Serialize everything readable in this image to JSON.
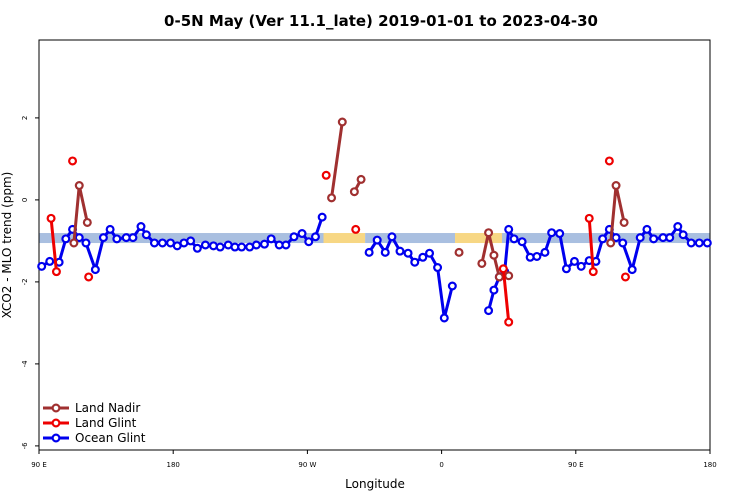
{
  "chart_data": {
    "type": "line",
    "title": "0-5N May (Ver 11.1_late)   2019-01-01 to 2023-04-30",
    "xlabel": "Longitude",
    "ylabel": "XCO2 - MLO trend (ppm)",
    "xlim": [
      0,
      500
    ],
    "ylim": [
      -6.1,
      3.9
    ],
    "x_ticks": [
      {
        "value": 0,
        "label": "90 E"
      },
      {
        "value": 100,
        "label": "180"
      },
      {
        "value": 200,
        "label": "90 W"
      },
      {
        "value": 300,
        "label": "0"
      },
      {
        "value": 400,
        "label": "90 E"
      },
      {
        "value": 500,
        "label": "180"
      }
    ],
    "y_ticks": [
      {
        "value": -6,
        "label": "-6"
      },
      {
        "value": -4,
        "label": "-4"
      },
      {
        "value": -2,
        "label": "-2"
      },
      {
        "value": 0,
        "label": "0"
      },
      {
        "value": 2,
        "label": "2"
      }
    ],
    "band": {
      "y": -0.93,
      "segments": [
        {
          "x0": 0,
          "x1": 212,
          "color": "#a9bfe0"
        },
        {
          "x0": 212,
          "x1": 243,
          "color": "#f7d784"
        },
        {
          "x0": 243,
          "x1": 310,
          "color": "#a9bfe0"
        },
        {
          "x0": 310,
          "x1": 345,
          "color": "#f7d784"
        },
        {
          "x0": 345,
          "x1": 500,
          "color": "#a9bfe0"
        }
      ]
    },
    "legend_position": "bottom-left",
    "series": [
      {
        "name": "Ocean Glint",
        "color": "#0000ee",
        "segments": [
          [
            [
              2,
              -1.62
            ],
            [
              8,
              -1.5
            ],
            [
              15,
              -1.52
            ],
            [
              20,
              -0.95
            ],
            [
              25,
              -0.72
            ],
            [
              30,
              -0.92
            ],
            [
              35,
              -1.05
            ],
            [
              42,
              -1.7
            ],
            [
              48,
              -0.92
            ],
            [
              53,
              -0.72
            ],
            [
              58,
              -0.95
            ],
            [
              65,
              -0.92
            ],
            [
              70,
              -0.92
            ],
            [
              76,
              -0.65
            ],
            [
              80,
              -0.85
            ],
            [
              86,
              -1.05
            ],
            [
              92,
              -1.05
            ],
            [
              98,
              -1.05
            ],
            [
              103,
              -1.12
            ],
            [
              108,
              -1.05
            ],
            [
              113,
              -1.0
            ],
            [
              118,
              -1.18
            ],
            [
              124,
              -1.1
            ],
            [
              130,
              -1.12
            ],
            [
              135,
              -1.15
            ],
            [
              141,
              -1.1
            ],
            [
              146,
              -1.15
            ],
            [
              151,
              -1.15
            ],
            [
              157,
              -1.15
            ],
            [
              162,
              -1.1
            ],
            [
              168,
              -1.08
            ],
            [
              173,
              -0.95
            ],
            [
              179,
              -1.1
            ],
            [
              184,
              -1.1
            ],
            [
              190,
              -0.9
            ],
            [
              196,
              -0.82
            ],
            [
              201,
              -1.02
            ],
            [
              206,
              -0.9
            ],
            [
              211,
              -0.42
            ]
          ],
          [
            [
              246,
              -1.28
            ],
            [
              252,
              -0.98
            ],
            [
              258,
              -1.28
            ],
            [
              263,
              -0.9
            ],
            [
              269,
              -1.25
            ],
            [
              275,
              -1.3
            ],
            [
              280,
              -1.52
            ],
            [
              286,
              -1.4
            ],
            [
              291,
              -1.3
            ],
            [
              297,
              -1.65
            ],
            [
              302,
              -2.88
            ],
            [
              308,
              -2.1
            ]
          ],
          [
            [
              335,
              -2.7
            ],
            [
              339,
              -2.2
            ],
            [
              343,
              -1.88
            ],
            [
              347,
              -1.75
            ],
            [
              350,
              -0.72
            ],
            [
              354,
              -0.95
            ],
            [
              360,
              -1.02
            ],
            [
              366,
              -1.4
            ],
            [
              371,
              -1.38
            ],
            [
              377,
              -1.28
            ],
            [
              382,
              -0.8
            ],
            [
              388,
              -0.82
            ],
            [
              393,
              -1.68
            ],
            [
              399,
              -1.5
            ],
            [
              404,
              -1.62
            ],
            [
              410,
              -1.48
            ],
            [
              415,
              -1.5
            ],
            [
              420,
              -0.95
            ],
            [
              425,
              -0.72
            ],
            [
              430,
              -0.92
            ],
            [
              435,
              -1.05
            ],
            [
              442,
              -1.7
            ],
            [
              448,
              -0.92
            ],
            [
              453,
              -0.72
            ],
            [
              458,
              -0.95
            ],
            [
              465,
              -0.92
            ],
            [
              470,
              -0.92
            ],
            [
              476,
              -0.65
            ],
            [
              480,
              -0.85
            ],
            [
              486,
              -1.05
            ],
            [
              492,
              -1.05
            ],
            [
              498,
              -1.05
            ]
          ]
        ]
      },
      {
        "name": "Land Nadir",
        "color": "#a03030",
        "segments": [
          [
            [
              26,
              -1.05
            ],
            [
              30,
              0.35
            ],
            [
              36,
              -0.55
            ]
          ],
          [
            [
              218,
              0.05
            ],
            [
              226,
              1.9
            ]
          ],
          [
            [
              235,
              0.2
            ],
            [
              240,
              0.5
            ]
          ],
          [
            [
              313,
              -1.28
            ]
          ],
          [
            [
              330,
              -1.55
            ],
            [
              335,
              -0.8
            ],
            [
              339,
              -1.35
            ],
            [
              343,
              -1.88
            ]
          ],
          [
            [
              350,
              -1.85
            ]
          ],
          [
            [
              426,
              -1.05
            ],
            [
              430,
              0.35
            ],
            [
              436,
              -0.55
            ]
          ]
        ]
      },
      {
        "name": "Land Glint",
        "color": "#ee0000",
        "segments": [
          [
            [
              9,
              -0.45
            ],
            [
              13,
              -1.75
            ]
          ],
          [
            [
              25,
              0.95
            ]
          ],
          [
            [
              37,
              -1.88
            ]
          ],
          [
            [
              214,
              0.6
            ]
          ],
          [
            [
              236,
              -0.72
            ]
          ],
          [
            [
              346,
              -1.68
            ],
            [
              350,
              -2.98
            ]
          ],
          [
            [
              410,
              -0.45
            ],
            [
              413,
              -1.75
            ]
          ],
          [
            [
              425,
              0.95
            ]
          ],
          [
            [
              437,
              -1.88
            ]
          ]
        ]
      }
    ]
  }
}
